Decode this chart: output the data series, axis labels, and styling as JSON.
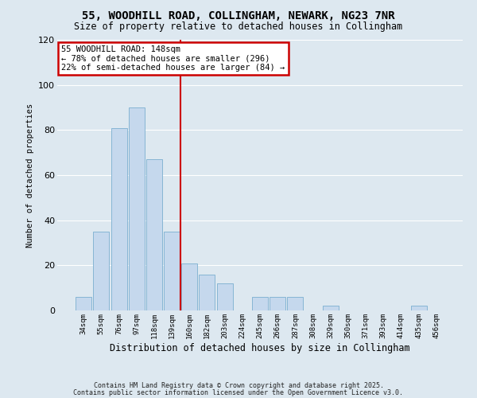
{
  "title": "55, WOODHILL ROAD, COLLINGHAM, NEWARK, NG23 7NR",
  "subtitle": "Size of property relative to detached houses in Collingham",
  "xlabel": "Distribution of detached houses by size in Collingham",
  "ylabel": "Number of detached properties",
  "bar_color": "#c5d8ed",
  "bar_edge_color": "#7aaed0",
  "background_color": "#dde8f0",
  "plot_bg_color": "#dde8f0",
  "grid_color": "#ffffff",
  "categories": [
    "34sqm",
    "55sqm",
    "76sqm",
    "97sqm",
    "118sqm",
    "139sqm",
    "160sqm",
    "182sqm",
    "203sqm",
    "224sqm",
    "245sqm",
    "266sqm",
    "287sqm",
    "308sqm",
    "329sqm",
    "350sqm",
    "371sqm",
    "393sqm",
    "414sqm",
    "435sqm",
    "456sqm"
  ],
  "values": [
    6,
    35,
    81,
    90,
    67,
    35,
    21,
    16,
    12,
    0,
    6,
    6,
    6,
    0,
    2,
    0,
    0,
    0,
    0,
    2,
    0
  ],
  "vline_x_idx": 5.5,
  "vline_color": "#cc0000",
  "annotation_text": "55 WOODHILL ROAD: 148sqm\n← 78% of detached houses are smaller (296)\n22% of semi-detached houses are larger (84) →",
  "annotation_box_color": "white",
  "annotation_box_edge": "#cc0000",
  "ylim": [
    0,
    120
  ],
  "yticks": [
    0,
    20,
    40,
    60,
    80,
    100,
    120
  ],
  "footer1": "Contains HM Land Registry data © Crown copyright and database right 2025.",
  "footer2": "Contains public sector information licensed under the Open Government Licence v3.0."
}
